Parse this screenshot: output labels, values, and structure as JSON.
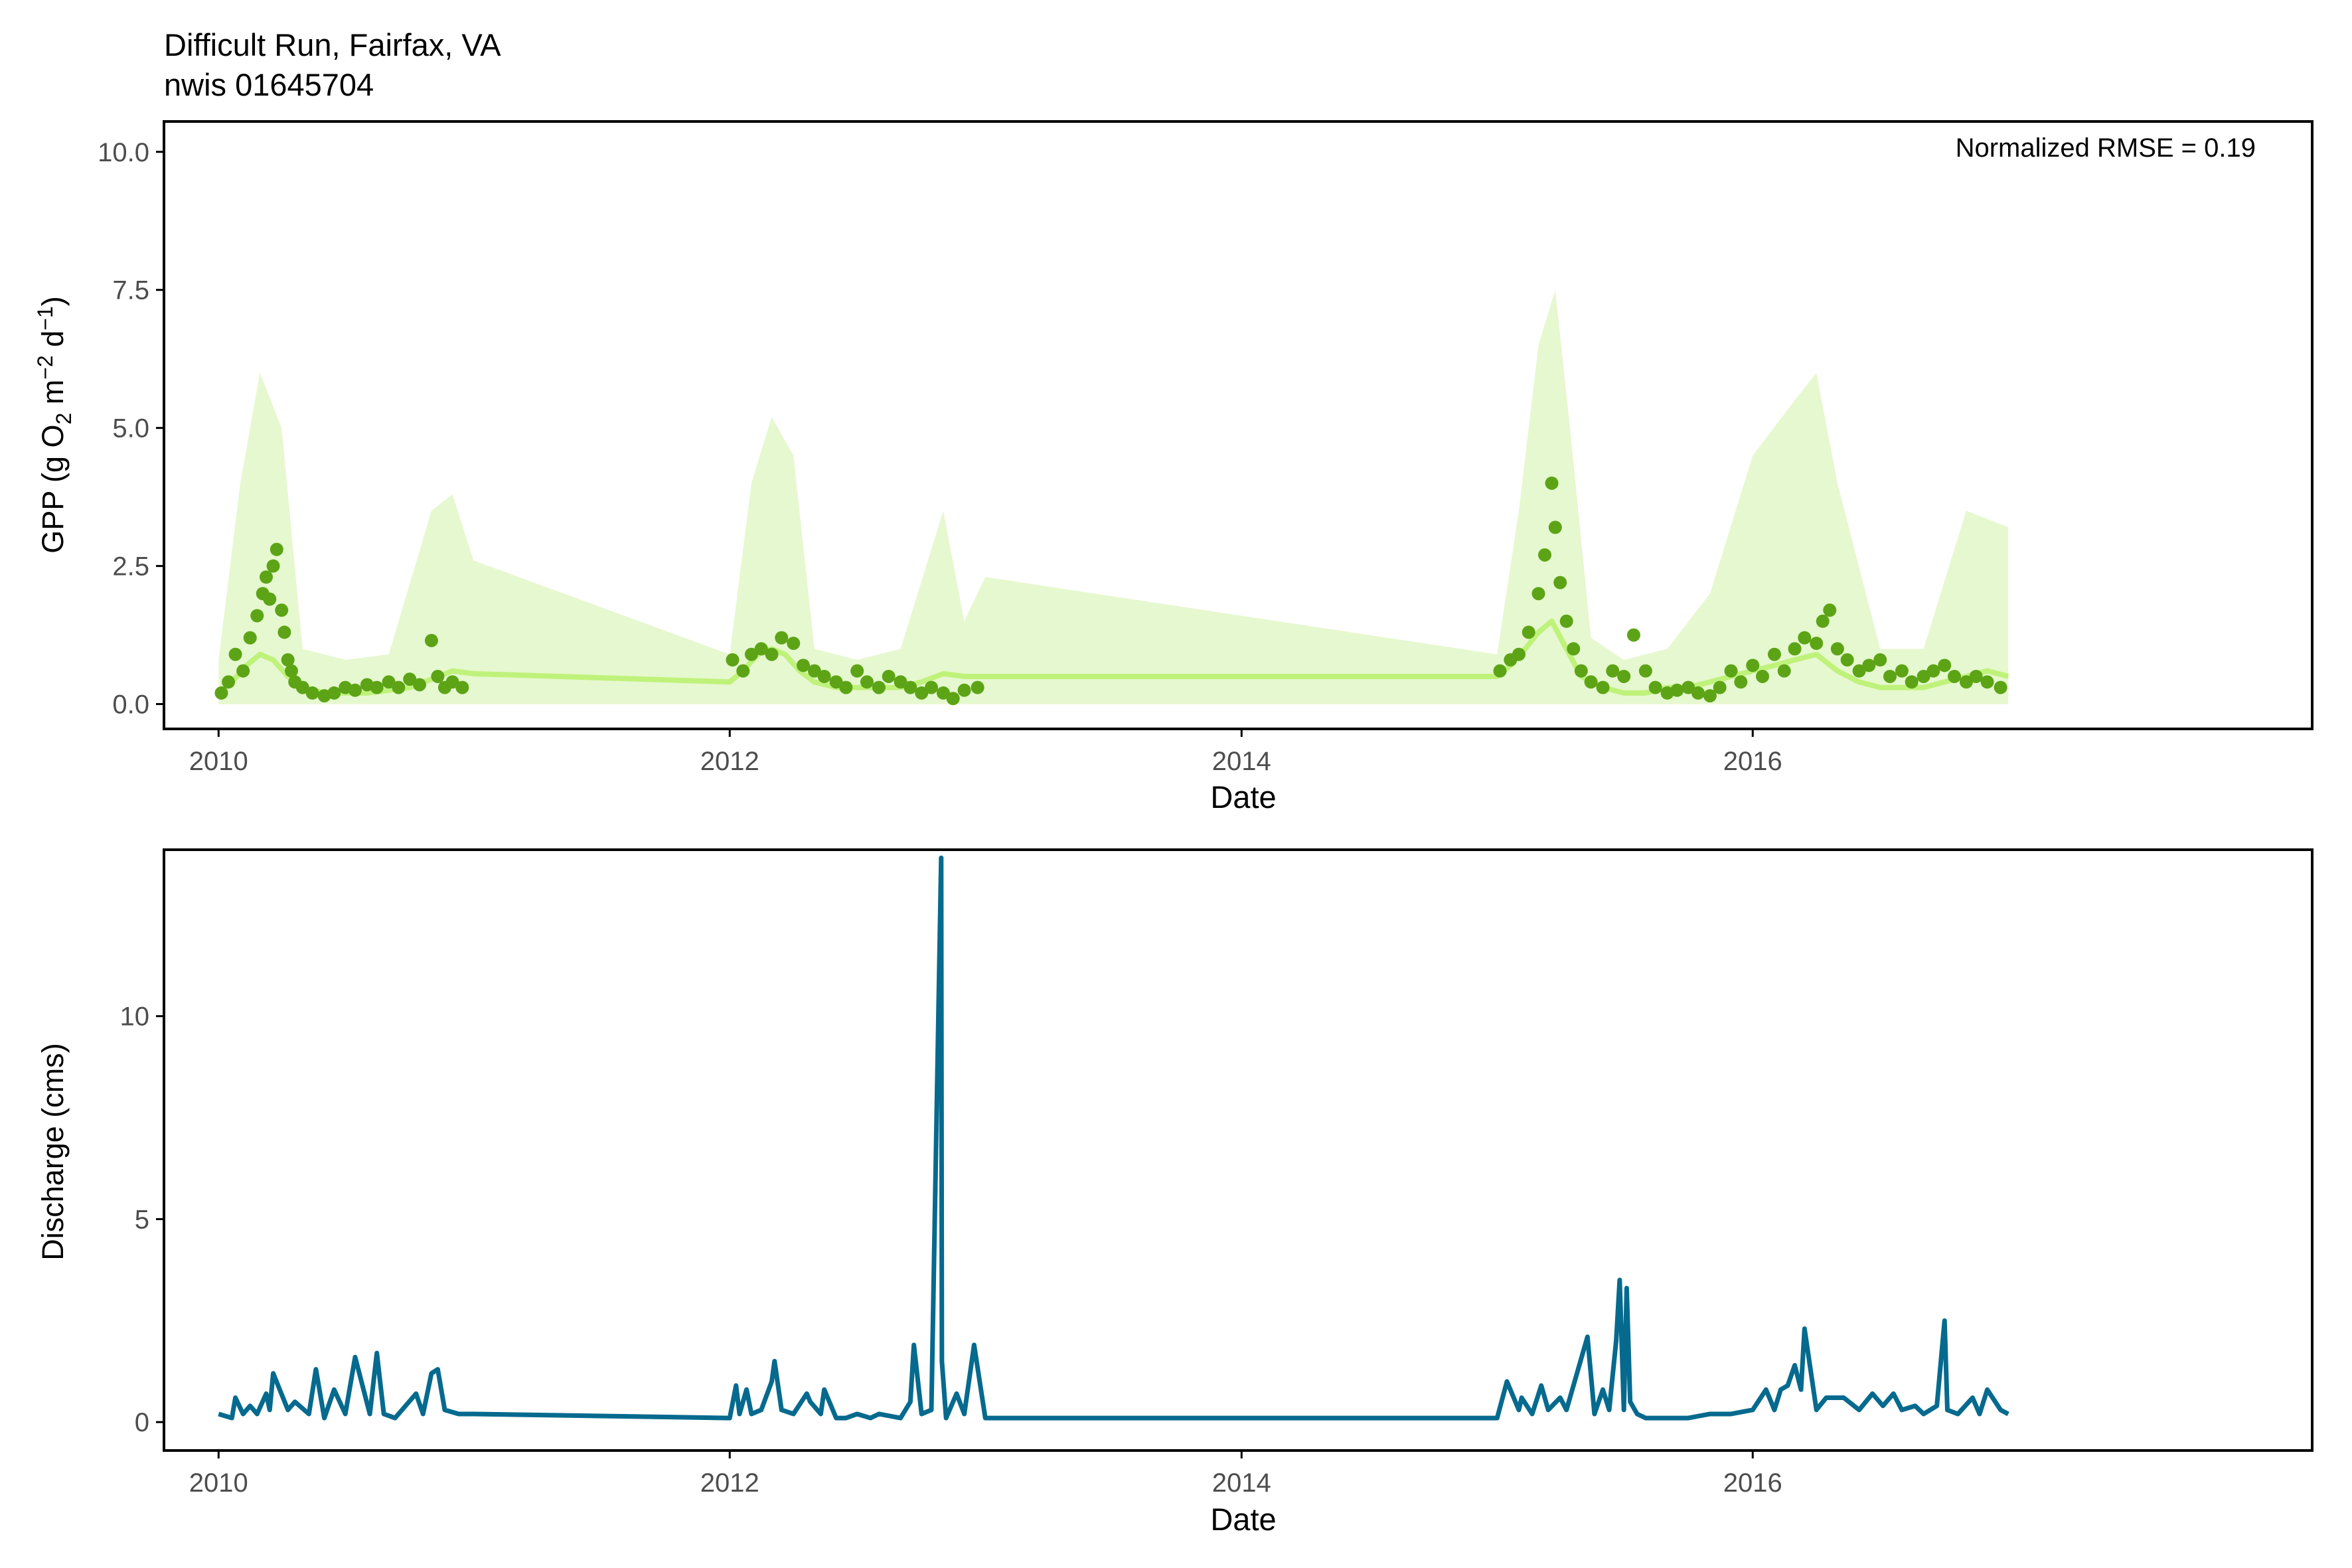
{
  "header": {
    "title": "Difficult Run, Fairfax, VA",
    "subtitle": "nwis 01645704"
  },
  "colors": {
    "gpp_points": "#5ca416",
    "gpp_model_line": "#bff27a",
    "gpp_ribbon": "#e6f8cf",
    "discharge_line": "#066a8e",
    "axis": "#000000",
    "tick_label": "#4d4d4d"
  },
  "chart_data": [
    {
      "type": "scatter",
      "ylabel_prefix": "GPP (g  O",
      "ylabel_sub": "2",
      "ylabel_mid1": " m",
      "ylabel_sup1": "−2",
      "ylabel_mid2": " d",
      "ylabel_sup2": "−1",
      "ylabel_suffix": ")",
      "xlabel": "Date",
      "xlim": [
        "2009-10-15",
        "2018-03-10"
      ],
      "ylim": [
        -0.45,
        10.55
      ],
      "x_ticks": [
        "2010",
        "2012",
        "2014",
        "2016"
      ],
      "y_ticks": [
        "0.0",
        "2.5",
        "5.0",
        "7.5",
        "10.0"
      ],
      "annotation": "Normalized RMSE = 0.19",
      "grid": false,
      "series": [
        {
          "kind": "points",
          "x": [
            "2010-01-05",
            "2010-01-15",
            "2010-01-25",
            "2010-02-05",
            "2010-02-15",
            "2010-02-25",
            "2010-03-05",
            "2010-03-10",
            "2010-03-15",
            "2010-03-20",
            "2010-03-25",
            "2010-04-01",
            "2010-04-05",
            "2010-04-10",
            "2010-04-15",
            "2010-04-20",
            "2010-05-01",
            "2010-05-15",
            "2010-06-01",
            "2010-06-15",
            "2010-07-01",
            "2010-07-15",
            "2010-08-01",
            "2010-08-15",
            "2010-09-01",
            "2010-09-15",
            "2010-10-01",
            "2010-10-15",
            "2010-11-01",
            "2010-11-10",
            "2010-11-20",
            "2010-12-01",
            "2010-12-15",
            "2012-01-05",
            "2012-01-20",
            "2012-02-01",
            "2012-02-15",
            "2012-03-01",
            "2012-03-15",
            "2012-04-01",
            "2012-04-15",
            "2012-05-01",
            "2012-05-15",
            "2012-06-01",
            "2012-06-15",
            "2012-07-01",
            "2012-07-15",
            "2012-08-01",
            "2012-08-15",
            "2012-09-01",
            "2012-09-15",
            "2012-10-01",
            "2012-10-15",
            "2012-11-01",
            "2012-11-15",
            "2012-12-01",
            "2012-12-20",
            "2015-01-05",
            "2015-01-20",
            "2015-02-01",
            "2015-02-15",
            "2015-03-01",
            "2015-03-10",
            "2015-03-20",
            "2015-03-25",
            "2015-04-01",
            "2015-04-10",
            "2015-04-20",
            "2015-05-01",
            "2015-05-15",
            "2015-06-01",
            "2015-06-15",
            "2015-07-01",
            "2015-07-15",
            "2015-08-01",
            "2015-08-15",
            "2015-09-01",
            "2015-09-15",
            "2015-10-01",
            "2015-10-15",
            "2015-11-01",
            "2015-11-15",
            "2015-12-01",
            "2015-12-15",
            "2016-01-01",
            "2016-01-15",
            "2016-02-01",
            "2016-02-15",
            "2016-03-01",
            "2016-03-15",
            "2016-04-01",
            "2016-04-10",
            "2016-04-20",
            "2016-05-01",
            "2016-05-15",
            "2016-06-01",
            "2016-06-15",
            "2016-07-01",
            "2016-07-15",
            "2016-08-01",
            "2016-08-15",
            "2016-09-01",
            "2016-09-15",
            "2016-10-01",
            "2016-10-15",
            "2016-11-01",
            "2016-11-15",
            "2016-12-01",
            "2016-12-20"
          ],
          "y": [
            0.2,
            0.4,
            0.9,
            0.6,
            1.2,
            1.6,
            2.0,
            2.3,
            1.9,
            2.5,
            2.8,
            1.7,
            1.3,
            0.8,
            0.6,
            0.4,
            0.3,
            0.2,
            0.15,
            0.2,
            0.3,
            0.25,
            0.35,
            0.3,
            0.4,
            0.3,
            0.45,
            0.35,
            1.15,
            0.5,
            0.3,
            0.4,
            0.3,
            0.8,
            0.6,
            0.9,
            1.0,
            0.9,
            1.2,
            1.1,
            0.7,
            0.6,
            0.5,
            0.4,
            0.3,
            0.6,
            0.4,
            0.3,
            0.5,
            0.4,
            0.3,
            0.2,
            0.3,
            0.2,
            0.1,
            0.25,
            0.3,
            0.6,
            0.8,
            0.9,
            1.3,
            2.0,
            2.7,
            4.0,
            3.2,
            2.2,
            1.5,
            1.0,
            0.6,
            0.4,
            0.3,
            0.6,
            0.5,
            1.25,
            0.6,
            0.3,
            0.2,
            0.25,
            0.3,
            0.2,
            0.15,
            0.3,
            0.6,
            0.4,
            0.7,
            0.5,
            0.9,
            0.6,
            1.0,
            1.2,
            1.1,
            1.5,
            1.7,
            1.0,
            0.8,
            0.6,
            0.7,
            0.8,
            0.5,
            0.6,
            0.4,
            0.5,
            0.6,
            0.7,
            0.5,
            0.4,
            0.5,
            0.4,
            0.3
          ]
        },
        {
          "kind": "line",
          "x": [
            "2010-01-01",
            "2010-01-20",
            "2010-02-10",
            "2010-03-01",
            "2010-03-20",
            "2010-04-10",
            "2010-05-01",
            "2010-06-01",
            "2010-07-01",
            "2010-08-01",
            "2010-09-01",
            "2010-10-01",
            "2010-11-01",
            "2010-12-01",
            "2010-12-31",
            "2012-01-01",
            "2012-01-20",
            "2012-02-10",
            "2012-03-01",
            "2012-03-20",
            "2012-04-10",
            "2012-05-01",
            "2012-06-01",
            "2012-07-01",
            "2012-08-01",
            "2012-09-01",
            "2012-10-01",
            "2012-11-01",
            "2012-12-01",
            "2012-12-31",
            "2015-01-01",
            "2015-01-20",
            "2015-02-10",
            "2015-03-01",
            "2015-03-20",
            "2015-04-10",
            "2015-05-01",
            "2015-06-01",
            "2015-07-01",
            "2015-08-01",
            "2015-09-01",
            "2015-10-01",
            "2015-11-01",
            "2015-12-01",
            "2016-01-01",
            "2016-02-01",
            "2016-03-01",
            "2016-04-01",
            "2016-05-01",
            "2016-06-01",
            "2016-07-01",
            "2016-08-01",
            "2016-09-01",
            "2016-10-01",
            "2016-11-01",
            "2016-12-01",
            "2016-12-31"
          ],
          "y": [
            0.2,
            0.4,
            0.7,
            0.9,
            0.8,
            0.5,
            0.3,
            0.2,
            0.2,
            0.2,
            0.25,
            0.3,
            0.45,
            0.6,
            0.55,
            0.4,
            0.6,
            0.9,
            1.0,
            0.9,
            0.6,
            0.4,
            0.3,
            0.3,
            0.3,
            0.3,
            0.4,
            0.55,
            0.5,
            0.5,
            0.5,
            0.7,
            1.0,
            1.3,
            1.5,
            1.0,
            0.5,
            0.3,
            0.2,
            0.2,
            0.3,
            0.3,
            0.4,
            0.5,
            0.6,
            0.7,
            0.8,
            0.9,
            0.6,
            0.4,
            0.3,
            0.3,
            0.3,
            0.4,
            0.5,
            0.6,
            0.5
          ]
        },
        {
          "kind": "ribbon",
          "x": [
            "2010-01-01",
            "2010-02-01",
            "2010-03-01",
            "2010-04-01",
            "2010-05-01",
            "2010-07-01",
            "2010-09-01",
            "2010-11-01",
            "2010-12-01",
            "2010-12-31",
            "2012-01-01",
            "2012-02-01",
            "2012-03-01",
            "2012-04-01",
            "2012-05-01",
            "2012-07-01",
            "2012-09-01",
            "2012-11-01",
            "2012-12-01",
            "2012-12-31",
            "2015-01-01",
            "2015-02-01",
            "2015-03-01",
            "2015-03-25",
            "2015-04-15",
            "2015-05-15",
            "2015-07-01",
            "2015-09-01",
            "2015-11-01",
            "2016-01-01",
            "2016-03-01",
            "2016-04-01",
            "2016-05-01",
            "2016-07-01",
            "2016-09-01",
            "2016-11-01",
            "2016-12-31"
          ],
          "upper": [
            0.8,
            4.0,
            6.0,
            5.0,
            1.0,
            0.8,
            0.9,
            3.5,
            3.8,
            2.6,
            0.9,
            4.0,
            5.2,
            4.5,
            1.0,
            0.8,
            1.0,
            3.5,
            1.5,
            2.3,
            0.9,
            3.5,
            6.5,
            7.5,
            5.0,
            1.2,
            0.8,
            1.0,
            2.0,
            4.5,
            5.5,
            6.0,
            4.0,
            1.0,
            1.0,
            3.5,
            3.2
          ],
          "lower": [
            0,
            0,
            0,
            0,
            0,
            0,
            0,
            0,
            0,
            0,
            0,
            0,
            0,
            0,
            0,
            0,
            0,
            0,
            0,
            0,
            0,
            0,
            0,
            0,
            0,
            0,
            0,
            0,
            0,
            0,
            0,
            0,
            0,
            0,
            0,
            0,
            0
          ]
        }
      ]
    },
    {
      "type": "line",
      "ylabel": "Discharge (cms)",
      "xlabel": "Date",
      "xlim": [
        "2009-10-15",
        "2018-03-10"
      ],
      "ylim": [
        -0.7,
        14.1
      ],
      "x_ticks": [
        "2010",
        "2012",
        "2014",
        "2016"
      ],
      "y_ticks": [
        "0",
        "5",
        "10"
      ],
      "grid": false,
      "series": [
        {
          "x": [
            "2010-01-01",
            "2010-01-20",
            "2010-01-25",
            "2010-02-05",
            "2010-02-15",
            "2010-02-25",
            "2010-03-10",
            "2010-03-15",
            "2010-03-20",
            "2010-04-10",
            "2010-04-20",
            "2010-05-10",
            "2010-05-20",
            "2010-06-01",
            "2010-06-15",
            "2010-07-01",
            "2010-07-15",
            "2010-08-05",
            "2010-08-15",
            "2010-08-25",
            "2010-09-10",
            "2010-09-20",
            "2010-10-10",
            "2010-10-20",
            "2010-11-01",
            "2010-11-10",
            "2010-11-20",
            "2010-12-10",
            "2010-12-31",
            "2012-01-01",
            "2012-01-10",
            "2012-01-15",
            "2012-01-25",
            "2012-02-01",
            "2012-02-15",
            "2012-03-01",
            "2012-03-05",
            "2012-03-15",
            "2012-04-01",
            "2012-04-20",
            "2012-04-25",
            "2012-05-10",
            "2012-05-15",
            "2012-06-01",
            "2012-06-15",
            "2012-07-01",
            "2012-07-20",
            "2012-08-01",
            "2012-09-01",
            "2012-09-15",
            "2012-09-20",
            "2012-10-01",
            "2012-10-15",
            "2012-10-29",
            "2012-10-30",
            "2012-11-05",
            "2012-11-20",
            "2012-12-01",
            "2012-12-15",
            "2012-12-31",
            "2015-01-01",
            "2015-01-15",
            "2015-02-01",
            "2015-02-05",
            "2015-02-20",
            "2015-03-05",
            "2015-03-15",
            "2015-04-01",
            "2015-04-10",
            "2015-04-20",
            "2015-05-10",
            "2015-05-20",
            "2015-06-01",
            "2015-06-10",
            "2015-06-20",
            "2015-06-25",
            "2015-07-01",
            "2015-07-05",
            "2015-07-10",
            "2015-07-20",
            "2015-08-01",
            "2015-09-01",
            "2015-10-01",
            "2015-11-01",
            "2015-12-01",
            "2016-01-01",
            "2016-01-20",
            "2016-02-01",
            "2016-02-10",
            "2016-02-20",
            "2016-03-01",
            "2016-03-10",
            "2016-03-15",
            "2016-04-01",
            "2016-04-15",
            "2016-05-01",
            "2016-05-10",
            "2016-06-01",
            "2016-06-20",
            "2016-07-05",
            "2016-07-20",
            "2016-08-01",
            "2016-08-20",
            "2016-09-01",
            "2016-09-20",
            "2016-10-01",
            "2016-10-05",
            "2016-10-20",
            "2016-11-10",
            "2016-11-20",
            "2016-12-01",
            "2016-12-20",
            "2016-12-31"
          ],
          "y": [
            0.2,
            0.1,
            0.6,
            0.2,
            0.4,
            0.2,
            0.7,
            0.3,
            1.2,
            0.3,
            0.5,
            0.2,
            1.3,
            0.1,
            0.8,
            0.2,
            1.6,
            0.2,
            1.7,
            0.2,
            0.1,
            0.3,
            0.7,
            0.2,
            1.2,
            1.3,
            0.3,
            0.2,
            0.2,
            0.1,
            0.9,
            0.2,
            0.8,
            0.2,
            0.3,
            1.0,
            1.5,
            0.3,
            0.2,
            0.7,
            0.5,
            0.2,
            0.8,
            0.1,
            0.1,
            0.2,
            0.1,
            0.2,
            0.1,
            0.5,
            1.9,
            0.2,
            0.3,
            13.9,
            1.5,
            0.1,
            0.7,
            0.2,
            1.9,
            0.1,
            0.1,
            1.0,
            0.3,
            0.6,
            0.2,
            0.9,
            0.3,
            0.6,
            0.3,
            0.9,
            2.1,
            0.2,
            0.8,
            0.3,
            2.0,
            3.5,
            0.3,
            3.3,
            0.5,
            0.2,
            0.1,
            0.1,
            0.1,
            0.2,
            0.2,
            0.3,
            0.8,
            0.3,
            0.8,
            0.9,
            1.4,
            0.8,
            2.3,
            0.3,
            0.6,
            0.6,
            0.6,
            0.3,
            0.7,
            0.4,
            0.7,
            0.3,
            0.4,
            0.2,
            0.4,
            2.5,
            0.3,
            0.2,
            0.6,
            0.2,
            0.8,
            0.3,
            0.2
          ]
        }
      ]
    }
  ]
}
